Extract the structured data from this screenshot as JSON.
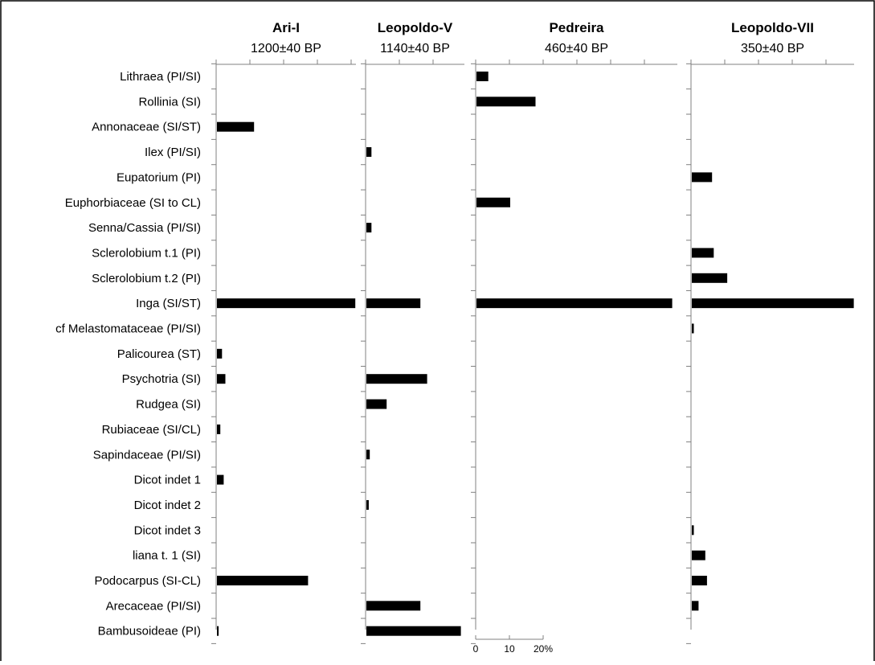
{
  "chart_data": {
    "type": "bar",
    "orientation": "horizontal",
    "categories": [
      "Lithraea (PI/SI)",
      "Rollinia (SI)",
      "Annonaceae (SI/ST)",
      "Ilex  (PI/SI)",
      "Eupatorium (PI)",
      "Euphorbiaceae (SI to CL)",
      "Senna/Cassia (PI/SI)",
      "Sclerolobium t.1 (PI)",
      "Sclerolobium t.2 (PI)",
      "Inga (SI/ST)",
      "cf Melastomataceae (PI/SI)",
      "Palicourea (ST)",
      "Psychotria (SI)",
      "Rudgea (SI)",
      "Rubiaceae (SI/CL)",
      "Sapindaceae (PI/SI)",
      "Dicot indet 1",
      "Dicot indet 2",
      "Dicot indet 3",
      "liana t. 1 (SI)",
      "Podocarpus (SI-CL)",
      "Arecaceae (PI/SI)",
      "Bambusoideae (PI)"
    ],
    "series": [
      {
        "name": "Ari-I",
        "date": "1200±40 BP",
        "values": [
          0,
          0,
          11,
          0,
          0,
          0,
          0,
          0,
          0,
          41,
          0,
          1.5,
          2.5,
          0,
          1,
          0,
          2,
          0,
          0,
          0,
          27,
          0,
          0.5
        ]
      },
      {
        "name": "Leopoldo-V",
        "date": "1140±40 BP",
        "values": [
          0,
          0,
          0,
          1.5,
          0,
          0,
          1.5,
          0,
          0,
          16,
          0,
          0,
          18,
          6,
          0,
          1,
          0,
          0.7,
          0,
          0,
          0,
          16,
          28
        ]
      },
      {
        "name": "Pedreira",
        "date": "460±40 BP",
        "values": [
          3.5,
          17.5,
          0,
          0,
          0,
          10,
          0,
          0,
          0,
          58,
          0,
          0,
          0,
          0,
          0,
          0,
          0,
          0,
          0,
          0,
          0,
          0,
          0
        ]
      },
      {
        "name": "Leopoldo-VII",
        "date": "350±40 BP",
        "values": [
          0,
          0,
          0,
          0,
          6,
          0,
          0,
          6.5,
          10.5,
          48,
          0.6,
          0,
          0,
          0,
          0,
          0,
          0,
          0,
          0.6,
          4,
          4.5,
          2,
          0
        ]
      }
    ],
    "unit": "%",
    "scale": {
      "max": 20,
      "ticks": [
        "0",
        "10",
        "20%"
      ]
    },
    "xlim": [
      0,
      60
    ],
    "grid": false,
    "colors": {
      "bar": "#000000",
      "axis": "#808080",
      "frame": "#000000"
    }
  }
}
